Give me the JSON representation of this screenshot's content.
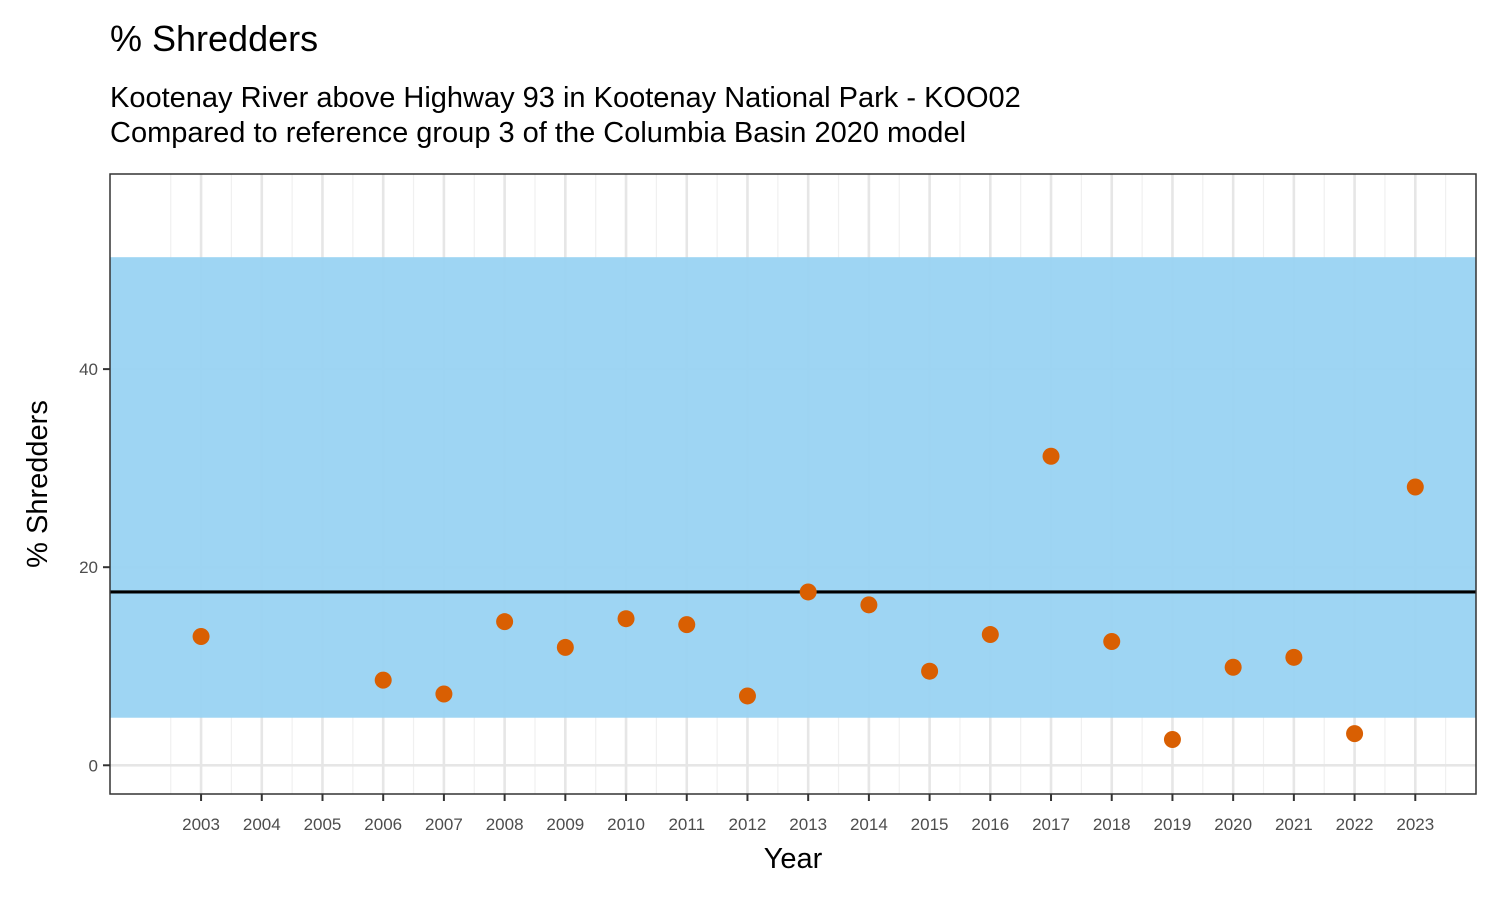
{
  "chart_data": {
    "type": "scatter",
    "title": "% Shredders",
    "subtitle_lines": [
      "Kootenay River above Highway 93 in Kootenay National Park - KOO02",
      "Compared to reference group 3 of the Columbia Basin 2020 model"
    ],
    "xlabel": "Year",
    "ylabel": "% Shredders",
    "x_ticks": [
      2003,
      2004,
      2005,
      2006,
      2007,
      2008,
      2009,
      2010,
      2011,
      2012,
      2013,
      2014,
      2015,
      2016,
      2017,
      2018,
      2019,
      2020,
      2021,
      2022,
      2023
    ],
    "y_ticks": [
      0,
      20,
      40
    ],
    "xlim": [
      2001.5,
      2024
    ],
    "ylim": [
      -2.9,
      59.7
    ],
    "grid": true,
    "reference_band": {
      "low": 4.8,
      "high": 51.3,
      "color": "#9ad3f2"
    },
    "reference_line": {
      "value": 17.5,
      "color": "#000000"
    },
    "point_color": "#d95f02",
    "points": [
      {
        "x": 2003,
        "y": 13.0
      },
      {
        "x": 2006,
        "y": 8.6
      },
      {
        "x": 2007,
        "y": 7.2
      },
      {
        "x": 2008,
        "y": 14.5
      },
      {
        "x": 2009,
        "y": 11.9
      },
      {
        "x": 2010,
        "y": 14.8
      },
      {
        "x": 2011,
        "y": 14.2
      },
      {
        "x": 2012,
        "y": 7.0
      },
      {
        "x": 2013,
        "y": 17.5
      },
      {
        "x": 2014,
        "y": 16.2
      },
      {
        "x": 2015,
        "y": 9.5
      },
      {
        "x": 2016,
        "y": 13.2
      },
      {
        "x": 2017,
        "y": 31.2
      },
      {
        "x": 2018,
        "y": 12.5
      },
      {
        "x": 2019,
        "y": 2.6
      },
      {
        "x": 2020,
        "y": 9.9
      },
      {
        "x": 2021,
        "y": 10.9
      },
      {
        "x": 2022,
        "y": 3.2
      },
      {
        "x": 2023,
        "y": 28.1
      }
    ]
  }
}
